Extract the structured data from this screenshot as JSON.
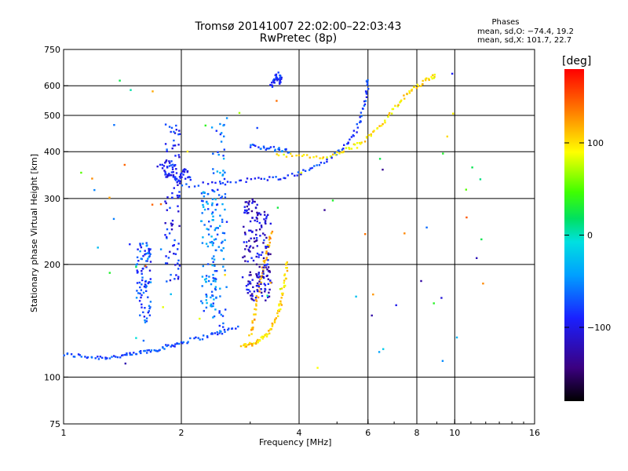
{
  "title_line1": "Tromsø 20141007 22:02:00–22:03:43",
  "title_line2": "RwPretec (8p)",
  "phase_stats": {
    "heading": "Phases",
    "line1": "mean, sd,O: −74.4, 19.2",
    "line2": "mean, sd,X: 101.7, 22.7"
  },
  "colorbar": {
    "unit": "[deg]",
    "ticks": [
      {
        "value": 100,
        "label": "100"
      },
      {
        "value": 0,
        "label": "0"
      },
      {
        "value": -100,
        "label": "−100"
      }
    ],
    "range": [
      -180,
      180
    ]
  },
  "chart_data": {
    "type": "scatter",
    "xlabel": "Frequency [MHz]",
    "ylabel": "Stationary phase Virtual Height [km]",
    "x_scale": "log",
    "y_scale": "log",
    "xlim": [
      1,
      16
    ],
    "ylim": [
      75,
      750
    ],
    "grid": true,
    "x_ticks": [
      {
        "value": 1,
        "label": "1"
      },
      {
        "value": 2,
        "label": "2"
      },
      {
        "value": 4,
        "label": "4"
      },
      {
        "value": 6,
        "label": "6"
      },
      {
        "value": 8,
        "label": "8"
      },
      {
        "value": 10,
        "label": "10"
      },
      {
        "value": 16,
        "label": "16"
      }
    ],
    "x_grid": [
      2,
      4,
      6,
      8,
      10
    ],
    "y_ticks": [
      {
        "value": 75,
        "label": "75"
      },
      {
        "value": 100,
        "label": "100"
      },
      {
        "value": 200,
        "label": "200"
      },
      {
        "value": 300,
        "label": "300"
      },
      {
        "value": 400,
        "label": "400"
      },
      {
        "value": 500,
        "label": "500"
      },
      {
        "value": 600,
        "label": "600"
      },
      {
        "value": 750,
        "label": "750"
      }
    ],
    "y_grid": [
      100,
      200,
      300,
      400,
      500,
      600
    ],
    "traces": [
      {
        "note": "O-mode E/F1 lower trace",
        "phase": -75,
        "points": [
          [
            1.0,
            115
          ],
          [
            1.1,
            114
          ],
          [
            1.2,
            113
          ],
          [
            1.3,
            113
          ],
          [
            1.4,
            114
          ],
          [
            1.5,
            115
          ],
          [
            1.6,
            117
          ],
          [
            1.7,
            118
          ],
          [
            1.8,
            120
          ],
          [
            1.9,
            122
          ],
          [
            2.0,
            124
          ],
          [
            2.2,
            127
          ],
          [
            2.4,
            130
          ],
          [
            2.6,
            133
          ],
          [
            2.8,
            136
          ]
        ]
      },
      {
        "note": "X-mode low trace",
        "phase": 105,
        "points": [
          [
            2.85,
            122
          ],
          [
            2.95,
            122
          ],
          [
            3.05,
            123
          ],
          [
            3.15,
            125
          ],
          [
            3.25,
            128
          ],
          [
            3.35,
            133
          ],
          [
            3.45,
            140
          ],
          [
            3.55,
            150
          ],
          [
            3.6,
            160
          ],
          [
            3.65,
            175
          ],
          [
            3.7,
            190
          ],
          [
            3.72,
            205
          ]
        ]
      },
      {
        "note": "X-mode second trace",
        "phase": 115,
        "points": [
          [
            3.0,
            130
          ],
          [
            3.05,
            140
          ],
          [
            3.1,
            155
          ],
          [
            3.15,
            170
          ],
          [
            3.2,
            185
          ],
          [
            3.25,
            200
          ],
          [
            3.3,
            215
          ],
          [
            3.35,
            230
          ],
          [
            3.4,
            245
          ]
        ]
      },
      {
        "note": "O-mode F2 trace",
        "phase": -80,
        "points": [
          [
            2.0,
            325
          ],
          [
            2.4,
            330
          ],
          [
            2.8,
            335
          ],
          [
            3.2,
            338
          ],
          [
            3.6,
            342
          ],
          [
            4.0,
            350
          ],
          [
            4.4,
            365
          ],
          [
            4.8,
            385
          ],
          [
            5.2,
            410
          ],
          [
            5.5,
            440
          ],
          [
            5.7,
            480
          ],
          [
            5.85,
            530
          ],
          [
            5.95,
            580
          ],
          [
            6.0,
            630
          ]
        ]
      },
      {
        "note": "X-mode F2 trace",
        "phase": 100,
        "points": [
          [
            3.5,
            395
          ],
          [
            4.0,
            390
          ],
          [
            4.5,
            385
          ],
          [
            5.0,
            395
          ],
          [
            5.4,
            410
          ],
          [
            5.8,
            425
          ],
          [
            6.2,
            450
          ],
          [
            6.6,
            480
          ],
          [
            7.0,
            520
          ],
          [
            7.4,
            560
          ],
          [
            7.8,
            590
          ],
          [
            8.2,
            610
          ],
          [
            8.6,
            630
          ],
          [
            9.0,
            640
          ]
        ]
      },
      {
        "note": "O-mode upper F trace",
        "phase": -70,
        "points": [
          [
            3.0,
            415
          ],
          [
            3.2,
            412
          ],
          [
            3.4,
            408
          ],
          [
            3.6,
            405
          ],
          [
            3.8,
            400
          ]
        ]
      },
      {
        "note": "O-mode spread cluster near 2 MHz",
        "phase": -95,
        "points": [
          [
            1.8,
            360
          ],
          [
            1.85,
            340
          ],
          [
            1.9,
            350
          ],
          [
            1.95,
            330
          ],
          [
            2.0,
            345
          ],
          [
            2.05,
            360
          ],
          [
            2.1,
            335
          ],
          [
            1.75,
            370
          ],
          [
            1.9,
            380
          ]
        ]
      },
      {
        "note": "Cluster near 3.5 MHz 620 km",
        "phase": -85,
        "points": [
          [
            3.4,
            600
          ],
          [
            3.45,
            620
          ],
          [
            3.5,
            640
          ],
          [
            3.55,
            610
          ],
          [
            3.6,
            630
          ],
          [
            3.5,
            650
          ]
        ]
      }
    ],
    "spread_columns": [
      {
        "x": 1.9,
        "y_min": 180,
        "y_max": 480,
        "phase": -90
      },
      {
        "x": 2.5,
        "y_min": 130,
        "y_max": 480,
        "phase": -60
      },
      {
        "x": 2.35,
        "y_min": 150,
        "y_max": 320,
        "phase": -55
      },
      {
        "x": 1.6,
        "y_min": 140,
        "y_max": 230,
        "phase": -75
      },
      {
        "x": 3.0,
        "y_min": 160,
        "y_max": 300,
        "phase": -110
      },
      {
        "x": 3.25,
        "y_min": 160,
        "y_max": 280,
        "phase": -110
      }
    ]
  }
}
